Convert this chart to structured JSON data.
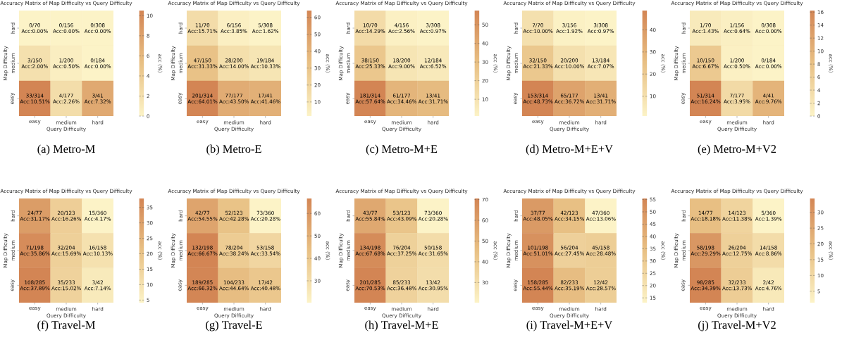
{
  "chart_data": [
    {
      "type": "heatmap",
      "title": "Accuracy Matrix of Map Difficulty vs Query Difficulty",
      "xlabel": "Query Difficulty",
      "ylabel": "Map Difficulty",
      "clabel": "acc (%)",
      "categories": [
        "easy",
        "medium",
        "hard"
      ],
      "y_categories": [
        "hard",
        "medium",
        "easy"
      ],
      "cells": [
        [
          0.0,
          0.0,
          0.0
        ],
        [
          2.0,
          0.5,
          0.0
        ],
        [
          10.51,
          2.26,
          7.32
        ]
      ],
      "cell_labels": [
        [
          "0/70 Acc:0.00%",
          "0/156 Acc:0.00%",
          "0/308 Acc:0.00%"
        ],
        [
          "3/150 Acc:2.00%",
          "1/200 Acc:0.50%",
          "0/184 Acc:0.00%"
        ],
        [
          "33/314 Acc:10.51%",
          "4/177 Acc:2.26%",
          "3/41 Acc:7.32%"
        ]
      ],
      "clim": [
        0,
        10.51
      ],
      "cticks": [
        0,
        2,
        4,
        6,
        8,
        10
      ],
      "annotations": [
        "(a) Metro-M"
      ]
    },
    {
      "type": "heatmap",
      "title": "Accuracy Matrix of Map Difficulty vs Query Difficulty",
      "xlabel": "Query Difficulty",
      "ylabel": "Map Difficulty",
      "clabel": "acc (%)",
      "categories": [
        "easy",
        "medium",
        "hard"
      ],
      "y_categories": [
        "hard",
        "medium",
        "easy"
      ],
      "cells": [
        [
          15.71,
          3.85,
          1.62
        ],
        [
          31.33,
          14.0,
          10.33
        ],
        [
          64.01,
          43.5,
          41.46
        ]
      ],
      "cell_labels": [
        [
          "11/70 Acc:15.71%",
          "6/156 Acc:3.85%",
          "5/308 Acc:1.62%"
        ],
        [
          "47/150 Acc:31.33%",
          "28/200 Acc:14.00%",
          "19/184 Acc:10.33%"
        ],
        [
          "201/314 Acc:64.01%",
          "77/177 Acc:43.50%",
          "17/41 Acc:41.46%"
        ]
      ],
      "clim": [
        1.62,
        64.01
      ],
      "cticks": [
        10,
        20,
        30,
        40,
        50,
        60
      ],
      "annotations": [
        "(b) Metro-E"
      ]
    },
    {
      "type": "heatmap",
      "title": "Accuracy Matrix of Map Difficulty vs Query Difficulty",
      "xlabel": "Query Difficulty",
      "ylabel": "Map Difficulty",
      "clabel": "acc (%)",
      "categories": [
        "easy",
        "medium",
        "hard"
      ],
      "y_categories": [
        "hard",
        "medium",
        "easy"
      ],
      "cells": [
        [
          14.29,
          2.56,
          0.97
        ],
        [
          25.33,
          9.0,
          6.52
        ],
        [
          57.64,
          34.46,
          31.71
        ]
      ],
      "cell_labels": [
        [
          "10/70 Acc:14.29%",
          "4/156 Acc:2.56%",
          "3/308 Acc:0.97%"
        ],
        [
          "38/150 Acc:25.33%",
          "18/200 Acc:9.00%",
          "12/184 Acc:6.52%"
        ],
        [
          "181/314 Acc:57.64%",
          "61/177 Acc:34.46%",
          "13/41 Acc:31.71%"
        ]
      ],
      "clim": [
        0.97,
        57.64
      ],
      "cticks": [
        10,
        20,
        30,
        40,
        50
      ],
      "annotations": [
        "(c) Metro-M+E"
      ]
    },
    {
      "type": "heatmap",
      "title": "Accuracy Matrix of Map Difficulty vs Query Difficulty",
      "xlabel": "Query Difficulty",
      "ylabel": "Map Difficulty",
      "clabel": "acc (%)",
      "categories": [
        "easy",
        "medium",
        "hard"
      ],
      "y_categories": [
        "hard",
        "medium",
        "easy"
      ],
      "cells": [
        [
          10.0,
          1.92,
          0.97
        ],
        [
          21.33,
          10.0,
          7.07
        ],
        [
          48.73,
          36.72,
          31.71
        ]
      ],
      "cell_labels": [
        [
          "7/70 Acc:10.00%",
          "3/156 Acc:1.92%",
          "3/308 Acc:0.97%"
        ],
        [
          "32/150 Acc:21.33%",
          "20/200 Acc:10.00%",
          "13/184 Acc:7.07%"
        ],
        [
          "153/314 Acc:48.73%",
          "65/177 Acc:36.72%",
          "13/41 Acc:31.71%"
        ]
      ],
      "clim": [
        0.97,
        48.73
      ],
      "cticks": [
        10,
        20,
        30,
        40
      ],
      "annotations": [
        "(d) Metro-M+E+V"
      ]
    },
    {
      "type": "heatmap",
      "title": "Accuracy Matrix of Map Difficulty vs Query Difficulty",
      "xlabel": "Query Difficulty",
      "ylabel": "Map Difficulty",
      "clabel": "acc (%)",
      "categories": [
        "easy",
        "medium",
        "hard"
      ],
      "y_categories": [
        "hard",
        "medium",
        "easy"
      ],
      "cells": [
        [
          1.43,
          0.64,
          0.0
        ],
        [
          6.67,
          0.5,
          0.0
        ],
        [
          16.24,
          3.95,
          9.76
        ]
      ],
      "cell_labels": [
        [
          "1/70 Acc:1.43%",
          "1/156 Acc:0.64%",
          "0/308 Acc:0.00%"
        ],
        [
          "10/150 Acc:6.67%",
          "1/200 Acc:0.50%",
          "0/184 Acc:0.00%"
        ],
        [
          "51/314 Acc:16.24%",
          "7/177 Acc:3.95%",
          "4/41 Acc:9.76%"
        ]
      ],
      "clim": [
        0,
        16.24
      ],
      "cticks": [
        0,
        2,
        4,
        6,
        8,
        10,
        12,
        14,
        16
      ],
      "annotations": [
        "(e) Metro-M+V2"
      ]
    },
    {
      "type": "heatmap",
      "title": "Accuracy Matrix of Map Difficulty vs Query Difficulty",
      "xlabel": "Query Difficulty",
      "ylabel": "Map Difficulty",
      "clabel": "acc (%)",
      "categories": [
        "easy",
        "medium",
        "hard"
      ],
      "y_categories": [
        "hard",
        "medium",
        "easy"
      ],
      "cells": [
        [
          31.17,
          16.26,
          4.17
        ],
        [
          35.86,
          15.69,
          10.13
        ],
        [
          37.89,
          15.02,
          7.14
        ]
      ],
      "cell_labels": [
        [
          "24/77 Acc:31.17%",
          "20/123 Acc:16.26%",
          "15/360 Acc:4.17%"
        ],
        [
          "71/198 Acc:35.86%",
          "32/204 Acc:15.69%",
          "16/158 Acc:10.13%"
        ],
        [
          "108/285 Acc:37.89%",
          "35/233 Acc:15.02%",
          "3/42 Acc:7.14%"
        ]
      ],
      "clim": [
        4.17,
        37.89
      ],
      "cticks": [
        5,
        10,
        15,
        20,
        25,
        30,
        35
      ],
      "annotations": [
        "(f) Travel-M"
      ]
    },
    {
      "type": "heatmap",
      "title": "Accuracy Matrix of Map Difficulty vs Query Difficulty",
      "xlabel": "Query Difficulty",
      "ylabel": "Map Difficulty",
      "clabel": "acc (%)",
      "categories": [
        "easy",
        "medium",
        "hard"
      ],
      "y_categories": [
        "hard",
        "medium",
        "easy"
      ],
      "cells": [
        [
          54.55,
          42.28,
          20.28
        ],
        [
          66.67,
          38.24,
          33.54
        ],
        [
          66.32,
          44.64,
          40.48
        ]
      ],
      "cell_labels": [
        [
          "42/77 Acc:54.55%",
          "52/123 Acc:42.28%",
          "73/360 Acc:20.28%"
        ],
        [
          "132/198 Acc:66.67%",
          "78/204 Acc:38.24%",
          "53/158 Acc:33.54%"
        ],
        [
          "189/285 Acc:66.32%",
          "104/233 Acc:44.64%",
          "17/42 Acc:40.48%"
        ]
      ],
      "clim": [
        20.28,
        66.67
      ],
      "cticks": [
        30,
        40,
        50,
        60
      ],
      "annotations": [
        "(g) Travel-E"
      ]
    },
    {
      "type": "heatmap",
      "title": "Accuracy Matrix of Map Difficulty vs Query Difficulty",
      "xlabel": "Query Difficulty",
      "ylabel": "Map Difficulty",
      "clabel": "acc (%)",
      "categories": [
        "easy",
        "medium",
        "hard"
      ],
      "y_categories": [
        "hard",
        "medium",
        "easy"
      ],
      "cells": [
        [
          55.84,
          43.09,
          20.28
        ],
        [
          67.68,
          37.25,
          31.65
        ],
        [
          70.53,
          36.48,
          30.95
        ]
      ],
      "cell_labels": [
        [
          "43/77 Acc:55.84%",
          "53/123 Acc:43.09%",
          "73/360 Acc:20.28%"
        ],
        [
          "134/198 Acc:67.68%",
          "76/204 Acc:37.25%",
          "50/158 Acc:31.65%"
        ],
        [
          "201/285 Acc:70.53%",
          "85/233 Acc:36.48%",
          "13/42 Acc:30.95%"
        ]
      ],
      "clim": [
        20.28,
        70.53
      ],
      "cticks": [
        30,
        40,
        50,
        60,
        70
      ],
      "annotations": [
        "(h) Travel-M+E"
      ]
    },
    {
      "type": "heatmap",
      "title": "Accuracy Matrix of Map Difficulty vs Query Difficulty",
      "xlabel": "Query Difficulty",
      "ylabel": "Map Difficulty",
      "clabel": "acc (%)",
      "categories": [
        "easy",
        "medium",
        "hard"
      ],
      "y_categories": [
        "hard",
        "medium",
        "easy"
      ],
      "cells": [
        [
          48.05,
          34.15,
          13.06
        ],
        [
          51.01,
          27.45,
          28.48
        ],
        [
          55.44,
          35.19,
          28.57
        ]
      ],
      "cell_labels": [
        [
          "37/77 Acc:48.05%",
          "42/123 Acc:34.15%",
          "47/360 Acc:13.06%"
        ],
        [
          "101/198 Acc:51.01%",
          "56/204 Acc:27.45%",
          "45/158 Acc:28.48%"
        ],
        [
          "158/285 Acc:55.44%",
          "82/233 Acc:35.19%",
          "12/42 Acc:28.57%"
        ]
      ],
      "clim": [
        13.06,
        55.44
      ],
      "cticks": [
        15,
        20,
        25,
        30,
        35,
        40,
        45,
        50,
        55
      ],
      "annotations": [
        "(i) Travel-M+E+V"
      ]
    },
    {
      "type": "heatmap",
      "title": "Accuracy Matrix of Map Difficulty vs Query Difficulty",
      "xlabel": "Query Difficulty",
      "ylabel": "Map Difficulty",
      "clabel": "acc (%)",
      "categories": [
        "easy",
        "medium",
        "hard"
      ],
      "y_categories": [
        "hard",
        "medium",
        "easy"
      ],
      "cells": [
        [
          18.18,
          11.38,
          1.39
        ],
        [
          29.29,
          12.75,
          8.86
        ],
        [
          34.39,
          13.73,
          4.76
        ]
      ],
      "cell_labels": [
        [
          "14/77 Acc:18.18%",
          "14/123 Acc:11.38%",
          "5/360 Acc:1.39%"
        ],
        [
          "58/198 Acc:29.29%",
          "26/204 Acc:12.75%",
          "14/158 Acc:8.86%"
        ],
        [
          "98/285 Acc:34.39%",
          "32/233 Acc:13.73%",
          "2/42 Acc:4.76%"
        ]
      ],
      "clim": [
        1.39,
        34.39
      ],
      "cticks": [
        5,
        10,
        15,
        20,
        25,
        30
      ],
      "annotations": [
        "(j) Travel-M+V2"
      ]
    }
  ]
}
